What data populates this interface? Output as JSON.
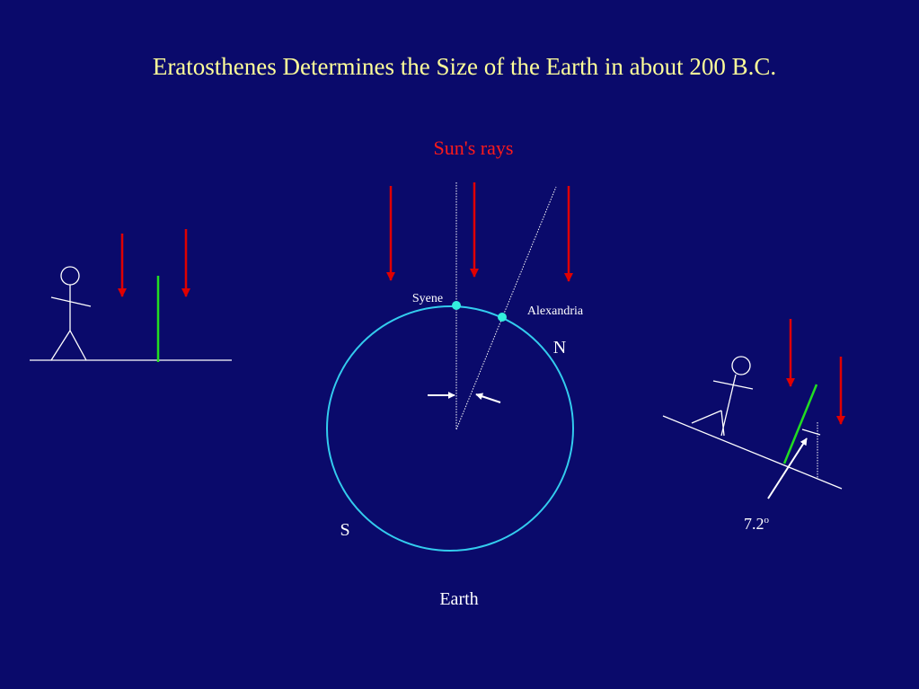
{
  "title": "Eratosthenes Determines the Size of the Earth in about 200 B.C.",
  "labels": {
    "sun_rays": "Sun's rays",
    "syene": "Syene",
    "alexandria": "Alexandria",
    "north": "N",
    "south": "S",
    "earth": "Earth"
  },
  "angle": {
    "label": "7.2",
    "superscript": "o"
  }
}
